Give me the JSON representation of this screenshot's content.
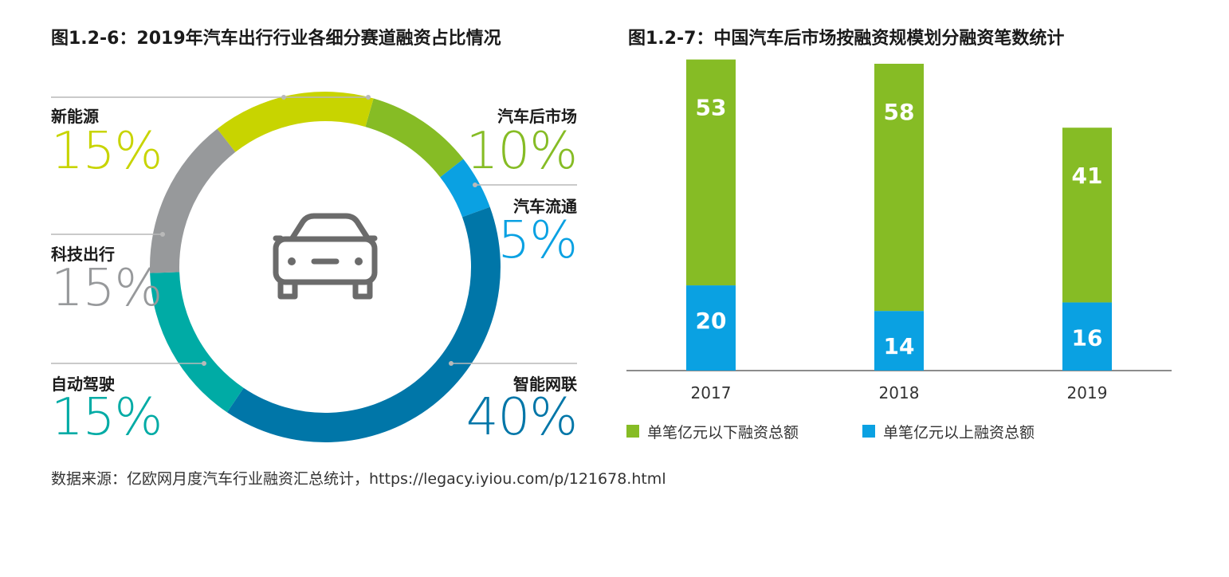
{
  "titles": {
    "left": "图1.2-6：2019年汽车出行行业各细分赛道融资占比情况",
    "right": "图1.2-7：中国汽车后市场按融资规模划分融资笔数统计"
  },
  "source": "数据来源：亿欧网月度汽车行业融资汇总统计，https://legacy.iyiou.com/p/121678.html",
  "center_icon": "car-icon",
  "chart_data": [
    {
      "type": "pie",
      "style": "donut",
      "categories": [
        "汽车后市场",
        "汽车流通",
        "智能网联",
        "自动驾驶",
        "科技出行",
        "新能源"
      ],
      "values": [
        10,
        5,
        40,
        15,
        15,
        15
      ],
      "labels": [
        "10%",
        "5%",
        "40%",
        "15%",
        "15%",
        "15%"
      ],
      "colors": [
        "#86bc25",
        "#0aa1e2",
        "#0076a8",
        "#00aba5",
        "#97999b",
        "#c8d400"
      ],
      "title": "",
      "legend": "callouts-around-ring"
    },
    {
      "type": "bar",
      "stacked": true,
      "categories": [
        "2017",
        "2018",
        "2019"
      ],
      "series": [
        {
          "name": "单笔亿元以上融资总额",
          "values": [
            20,
            14,
            16
          ],
          "labels": [
            "20",
            "14",
            "16"
          ],
          "color": "#0aa1e2"
        },
        {
          "name": "单笔亿元以下融资总额",
          "values": [
            53,
            58,
            41
          ],
          "labels": [
            "53",
            "58",
            "41"
          ],
          "color": "#86bc25"
        }
      ],
      "legend_order": [
        "单笔亿元以下融资总额",
        "单笔亿元以上融资总额"
      ],
      "title": "",
      "xlabel": "",
      "ylabel": "",
      "ylim": [
        0,
        72
      ],
      "grid": false,
      "legend": "bottom-left"
    }
  ]
}
